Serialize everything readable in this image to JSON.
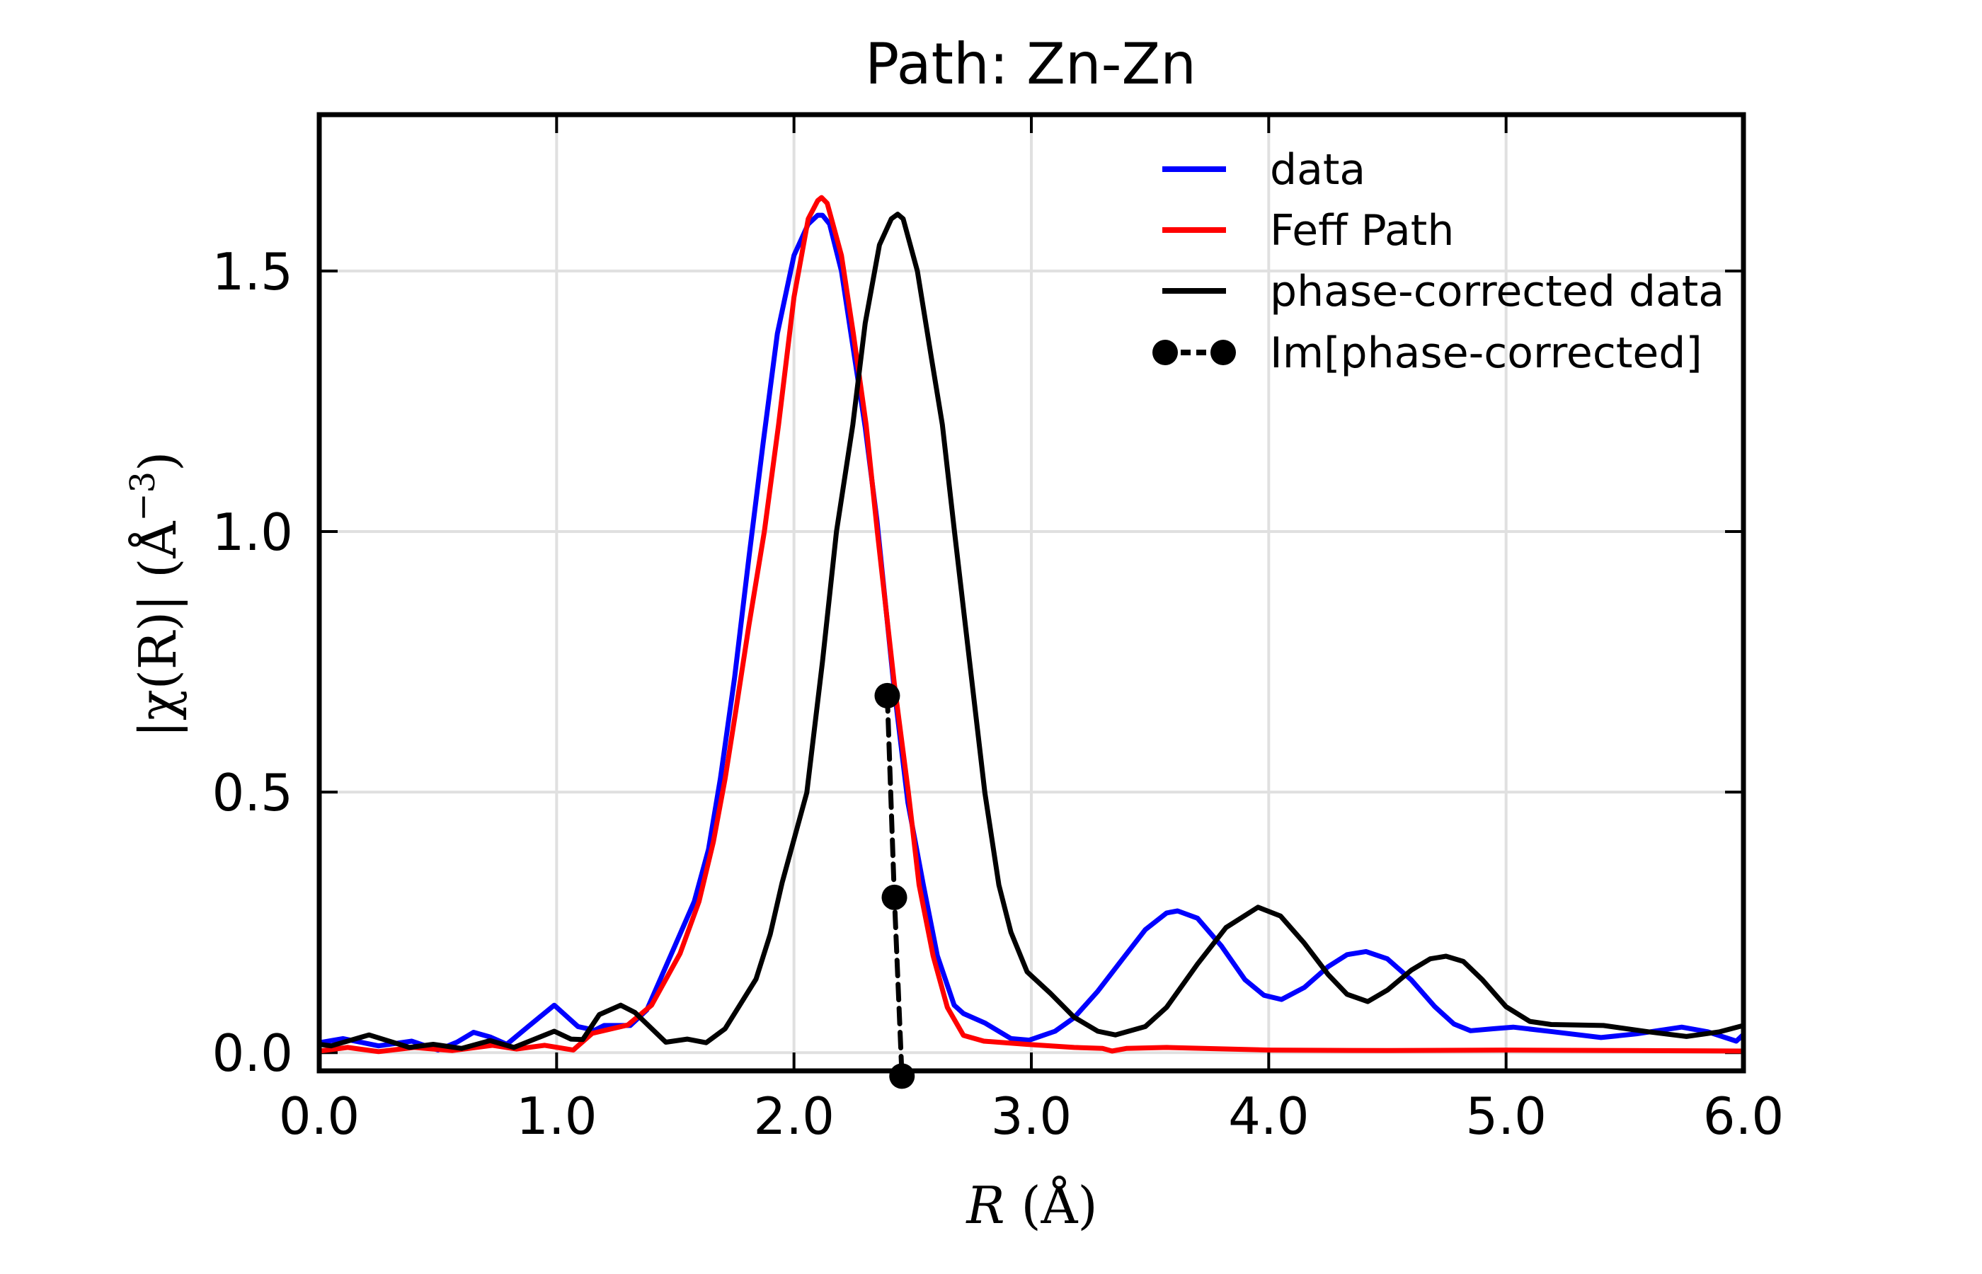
{
  "chart_data": {
    "type": "line",
    "title": "Path: Zn-Zn",
    "xlabel": "R (Å)",
    "ylabel": "|χ(R)| (Å⁻³)",
    "xlabel_parts": {
      "var": "R",
      "unit": "(Å)"
    },
    "ylabel_parts": {
      "main": "|χ(R)| (Å",
      "sup": "−3",
      "close": ")"
    },
    "xlim": [
      0.0,
      6.0
    ],
    "ylim": [
      -0.035,
      1.8
    ],
    "xticks": [
      0.0,
      1.0,
      2.0,
      3.0,
      4.0,
      5.0,
      6.0
    ],
    "xtick_labels": [
      "0.0",
      "1.0",
      "2.0",
      "3.0",
      "4.0",
      "5.0",
      "6.0"
    ],
    "yticks": [
      0.0,
      0.5,
      1.0,
      1.5
    ],
    "ytick_labels": [
      "0.0",
      "0.5",
      "1.0",
      "1.5"
    ],
    "grid": true,
    "legend_position": "top-right",
    "series": [
      {
        "name": "data",
        "color": "#0000ff",
        "style": "solid",
        "x": [
          0.0,
          0.1,
          0.25,
          0.39,
          0.5,
          0.58,
          0.65,
          0.72,
          0.79,
          0.88,
          0.99,
          1.09,
          1.16,
          1.2,
          1.31,
          1.38,
          1.49,
          1.58,
          1.64,
          1.69,
          1.75,
          1.81,
          1.87,
          1.93,
          2.0,
          2.06,
          2.1,
          2.12,
          2.15,
          2.2,
          2.25,
          2.3,
          2.35,
          2.42,
          2.48,
          2.545,
          2.604,
          2.675,
          2.714,
          2.804,
          2.914,
          2.991,
          3.1,
          3.18,
          3.28,
          3.38,
          3.48,
          3.57,
          3.616,
          3.7,
          3.8,
          3.9,
          3.98,
          4.054,
          4.15,
          4.25,
          4.33,
          4.41,
          4.5,
          4.6,
          4.7,
          4.78,
          4.85,
          4.95,
          5.03,
          5.2,
          5.4,
          5.55,
          5.74,
          5.85,
          5.97,
          6.0
        ],
        "y": [
          0.019,
          0.027,
          0.013,
          0.022,
          0.005,
          0.02,
          0.039,
          0.03,
          0.016,
          0.05,
          0.091,
          0.05,
          0.043,
          0.052,
          0.052,
          0.082,
          0.196,
          0.29,
          0.39,
          0.526,
          0.72,
          0.95,
          1.17,
          1.38,
          1.53,
          1.59,
          1.607,
          1.607,
          1.59,
          1.5,
          1.35,
          1.2,
          1.02,
          0.707,
          0.48,
          0.322,
          0.186,
          0.091,
          0.075,
          0.057,
          0.027,
          0.024,
          0.041,
          0.067,
          0.118,
          0.177,
          0.236,
          0.268,
          0.272,
          0.258,
          0.205,
          0.14,
          0.11,
          0.102,
          0.125,
          0.165,
          0.188,
          0.194,
          0.18,
          0.14,
          0.088,
          0.055,
          0.042,
          0.046,
          0.049,
          0.04,
          0.029,
          0.036,
          0.049,
          0.04,
          0.022,
          0.035
        ]
      },
      {
        "name": "Feff Path",
        "color": "#ff0000",
        "style": "solid",
        "x": [
          0.0,
          0.12,
          0.25,
          0.4,
          0.56,
          0.73,
          0.83,
          0.95,
          1.07,
          1.15,
          1.3,
          1.4,
          1.52,
          1.6,
          1.66,
          1.71,
          1.753,
          1.81,
          1.875,
          1.935,
          2.0,
          2.06,
          2.1,
          2.116,
          2.14,
          2.2,
          2.25,
          2.304,
          2.351,
          2.423,
          2.482,
          2.527,
          2.586,
          2.646,
          2.714,
          2.8,
          2.98,
          3.18,
          3.3,
          3.34,
          3.4,
          3.57,
          4.0,
          4.5,
          5.0,
          5.5,
          6.0
        ],
        "y": [
          0.003,
          0.01,
          0.002,
          0.01,
          0.004,
          0.014,
          0.007,
          0.014,
          0.005,
          0.037,
          0.053,
          0.091,
          0.19,
          0.29,
          0.404,
          0.526,
          0.65,
          0.82,
          1.0,
          1.205,
          1.45,
          1.6,
          1.635,
          1.641,
          1.63,
          1.53,
          1.38,
          1.205,
          1.0,
          0.707,
          0.499,
          0.322,
          0.186,
          0.087,
          0.033,
          0.022,
          0.016,
          0.01,
          0.008,
          0.003,
          0.008,
          0.01,
          0.005,
          0.004,
          0.005,
          0.004,
          0.003
        ]
      },
      {
        "name": "phase-corrected data",
        "color": "#000000",
        "style": "solid",
        "x": [
          0.0,
          0.05,
          0.21,
          0.38,
          0.48,
          0.6,
          0.72,
          0.82,
          0.99,
          1.06,
          1.11,
          1.18,
          1.27,
          1.33,
          1.46,
          1.55,
          1.63,
          1.71,
          1.84,
          1.9,
          1.95,
          2.054,
          2.12,
          2.179,
          2.248,
          2.3,
          2.36,
          2.41,
          2.437,
          2.46,
          2.52,
          2.58,
          2.625,
          2.676,
          2.74,
          2.804,
          2.863,
          2.914,
          2.982,
          3.08,
          3.18,
          3.28,
          3.354,
          3.48,
          3.57,
          3.7,
          3.82,
          3.955,
          4.05,
          4.15,
          4.25,
          4.33,
          4.417,
          4.5,
          4.6,
          4.68,
          4.747,
          4.82,
          4.9,
          5.0,
          5.1,
          5.19,
          5.41,
          5.6,
          5.76,
          5.9,
          6.0
        ],
        "y": [
          0.016,
          0.013,
          0.034,
          0.01,
          0.016,
          0.008,
          0.023,
          0.01,
          0.041,
          0.026,
          0.025,
          0.073,
          0.091,
          0.077,
          0.02,
          0.026,
          0.019,
          0.046,
          0.141,
          0.227,
          0.326,
          0.499,
          0.75,
          1.0,
          1.205,
          1.4,
          1.55,
          1.6,
          1.609,
          1.6,
          1.5,
          1.33,
          1.205,
          1.0,
          0.75,
          0.499,
          0.322,
          0.231,
          0.155,
          0.114,
          0.068,
          0.041,
          0.034,
          0.05,
          0.087,
          0.17,
          0.24,
          0.279,
          0.262,
          0.21,
          0.15,
          0.112,
          0.098,
          0.12,
          0.158,
          0.18,
          0.185,
          0.175,
          0.14,
          0.088,
          0.06,
          0.054,
          0.052,
          0.04,
          0.031,
          0.04,
          0.052
        ]
      },
      {
        "name": "Im[phase-corrected]",
        "color": "#000000",
        "style": "dashed-markers",
        "x": [
          2.393,
          2.423,
          2.455
        ],
        "y": [
          0.685,
          0.298,
          -0.045
        ]
      }
    ]
  }
}
